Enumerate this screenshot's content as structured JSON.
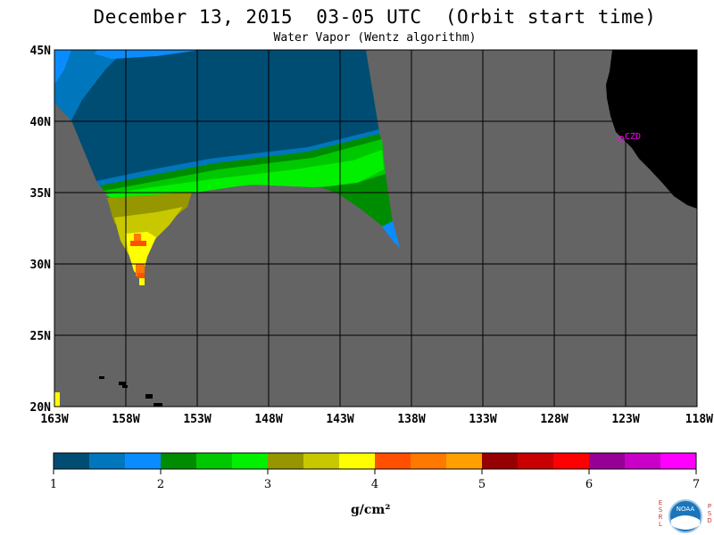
{
  "header": {
    "title": "December 13, 2015  03-05 UTC  (Orbit start time)",
    "subtitle": "Water Vapor (Wentz algorithm)"
  },
  "map": {
    "lat_labels": [
      "45N",
      "40N",
      "35N",
      "30N",
      "25N",
      "20N"
    ],
    "lon_labels": [
      "163W",
      "158W",
      "153W",
      "148W",
      "143W",
      "138W",
      "133W",
      "128W",
      "123W",
      "118W"
    ],
    "station_label": "CZD",
    "colors": {
      "ocean_nodata": "#646464",
      "land": "#000000",
      "grid": "#000000",
      "station": "#ff00ff"
    }
  },
  "legend": {
    "tick_labels": [
      "1",
      "2",
      "3",
      "4",
      "5",
      "6",
      "7"
    ],
    "unit": "g/cm²",
    "colors": [
      "#004d73",
      "#0076bd",
      "#0a8cff",
      "#008c00",
      "#00c800",
      "#00f000",
      "#969600",
      "#c8c800",
      "#ffff00",
      "#ff5000",
      "#ff7800",
      "#ffa000",
      "#960000",
      "#c80000",
      "#ff0000",
      "#960096",
      "#c800c8",
      "#ff00ff"
    ]
  },
  "logo": {
    "left_letters": "ESRL",
    "right_letters": "PSD",
    "center_text": "NOAA"
  }
}
